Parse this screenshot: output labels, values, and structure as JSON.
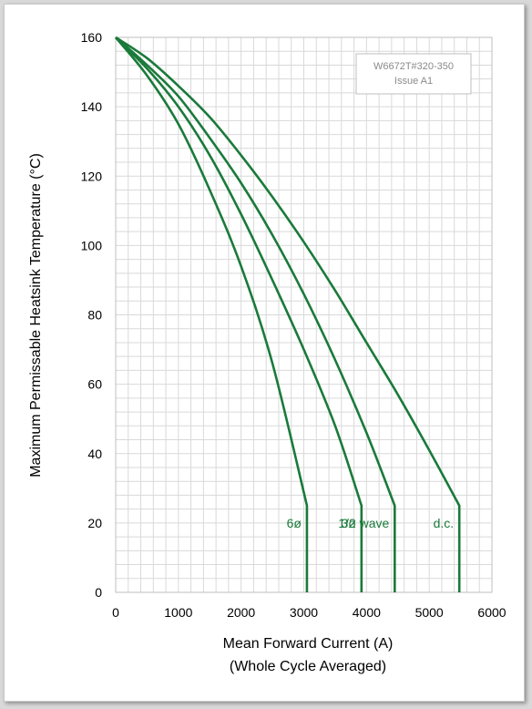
{
  "chart_data": {
    "type": "line",
    "title": "",
    "xlabel": "Mean Forward Current (A)",
    "xlabel_line2": "(Whole Cycle Averaged)",
    "ylabel": "Maximum Permissable Heatsink Temperature (°C)",
    "xlim": [
      0,
      6000
    ],
    "ylim": [
      0,
      160
    ],
    "x_ticks": [
      "0",
      "1000",
      "2000",
      "3000",
      "4000",
      "5000",
      "6000"
    ],
    "y_ticks": [
      "0",
      "20",
      "40",
      "60",
      "80",
      "100",
      "120",
      "140",
      "160"
    ],
    "grid": true,
    "line_color": "#1a7a3a",
    "annotation_box": {
      "line1": "W6672T#320-350",
      "line2": "Issue A1"
    },
    "series": [
      {
        "name": "6ø",
        "points": [
          [
            0,
            160
          ],
          [
            500,
            149
          ],
          [
            1000,
            135
          ],
          [
            1500,
            116
          ],
          [
            2000,
            94
          ],
          [
            2500,
            66
          ],
          [
            3050,
            25
          ],
          [
            3050,
            0
          ]
        ]
      },
      {
        "name": "3ø",
        "points": [
          [
            0,
            160
          ],
          [
            500,
            151
          ],
          [
            1000,
            140
          ],
          [
            1500,
            126
          ],
          [
            2000,
            109
          ],
          [
            2500,
            90
          ],
          [
            3000,
            70
          ],
          [
            3500,
            48
          ],
          [
            3920,
            25
          ],
          [
            3920,
            0
          ]
        ]
      },
      {
        "name": "1/2 wave",
        "points": [
          [
            0,
            160
          ],
          [
            500,
            152
          ],
          [
            1000,
            143
          ],
          [
            1500,
            131
          ],
          [
            2000,
            118
          ],
          [
            2500,
            103
          ],
          [
            3000,
            86
          ],
          [
            3500,
            67
          ],
          [
            4000,
            46
          ],
          [
            4450,
            25
          ],
          [
            4450,
            0
          ]
        ]
      },
      {
        "name": "d.c.",
        "points": [
          [
            0,
            160
          ],
          [
            500,
            154
          ],
          [
            1000,
            146
          ],
          [
            1500,
            137
          ],
          [
            2000,
            126
          ],
          [
            2500,
            114
          ],
          [
            3000,
            101
          ],
          [
            3500,
            87
          ],
          [
            4000,
            72
          ],
          [
            4500,
            57
          ],
          [
            5000,
            41
          ],
          [
            5480,
            25
          ],
          [
            5480,
            0
          ]
        ]
      }
    ]
  }
}
